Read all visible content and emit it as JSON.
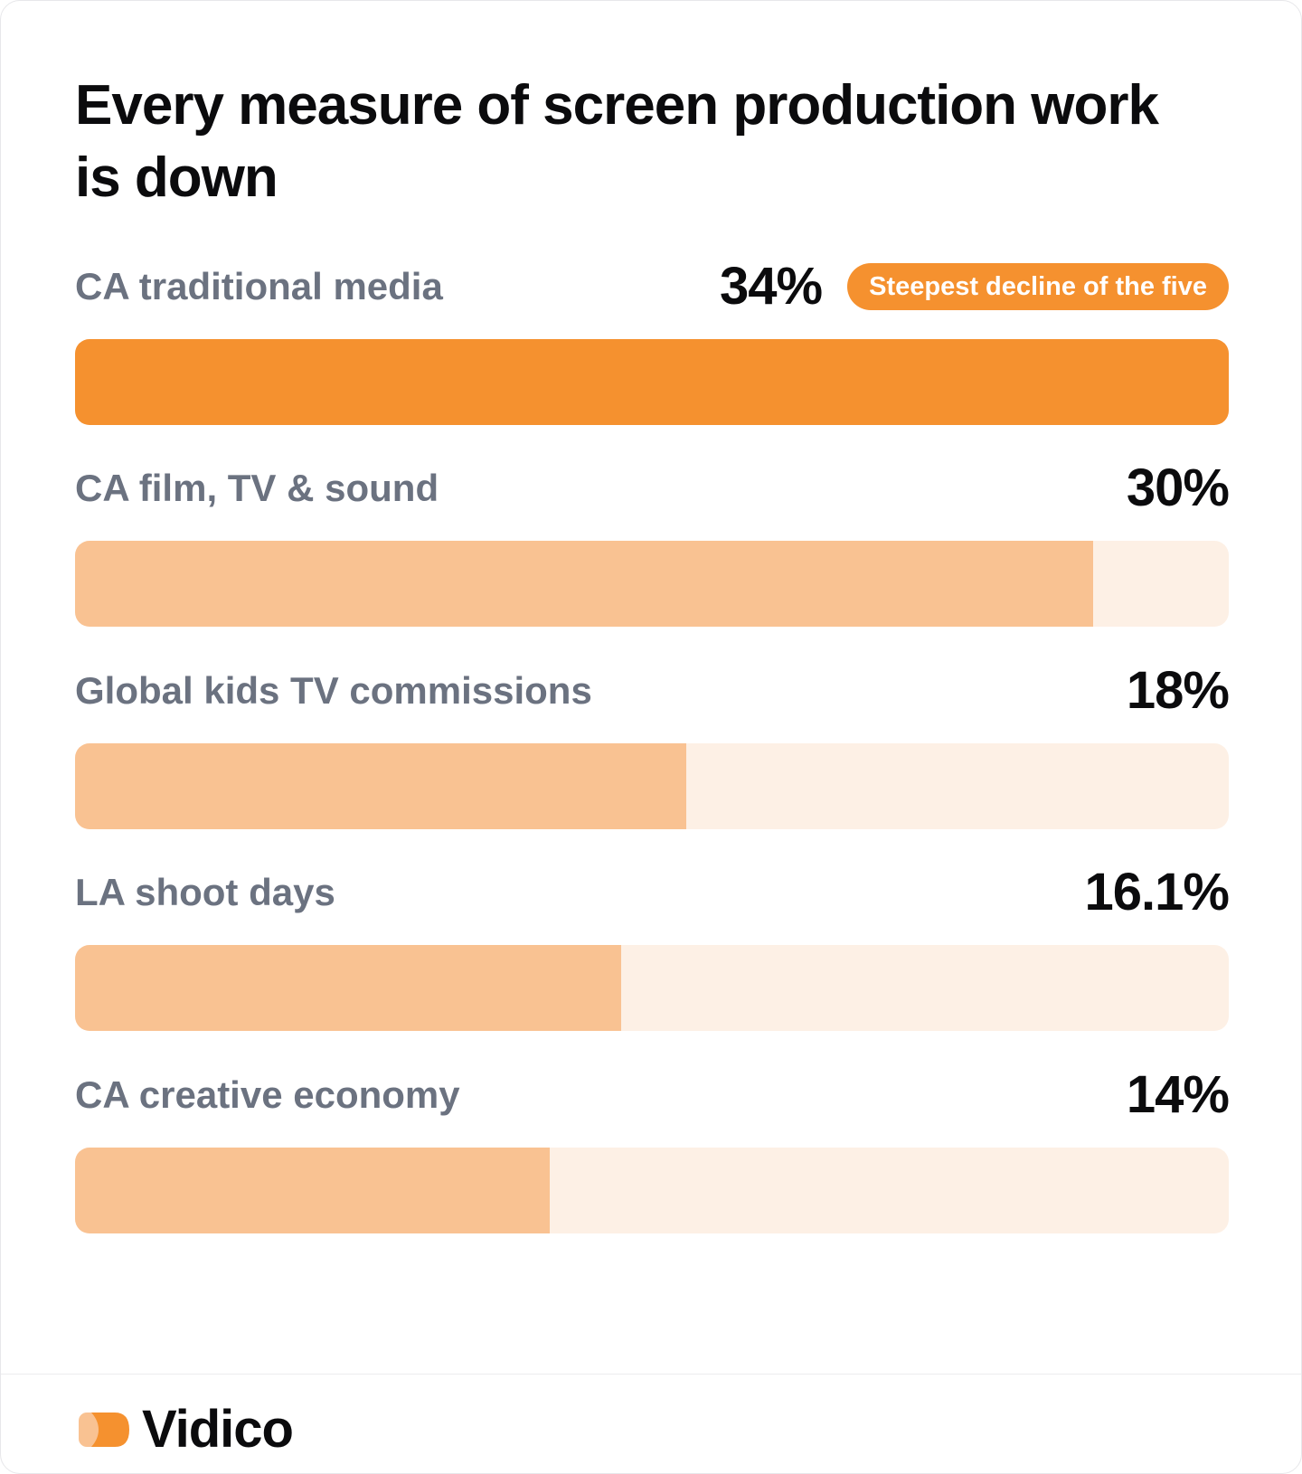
{
  "title": "Every measure of screen production work is down",
  "chart_data": {
    "type": "bar",
    "orientation": "horizontal",
    "xlim": [
      0,
      34
    ],
    "categories": [
      "CA traditional media",
      "CA film, TV & sound",
      "Global kids TV commissions",
      "LA shoot days",
      "CA creative economy"
    ],
    "values": [
      34,
      30,
      18,
      16.1,
      14
    ],
    "value_labels": [
      "34%",
      "30%",
      "18%",
      "16.1%",
      "14%"
    ],
    "annotations": [
      {
        "category": "CA traditional media",
        "text": "Steepest decline of the five"
      }
    ],
    "colors": {
      "highlight": "#f5912f",
      "bar": "#f9c292",
      "track": "#fdf0e5"
    }
  },
  "footer": {
    "brand": "Vidico",
    "logo_icon": "play-badge-icon"
  }
}
